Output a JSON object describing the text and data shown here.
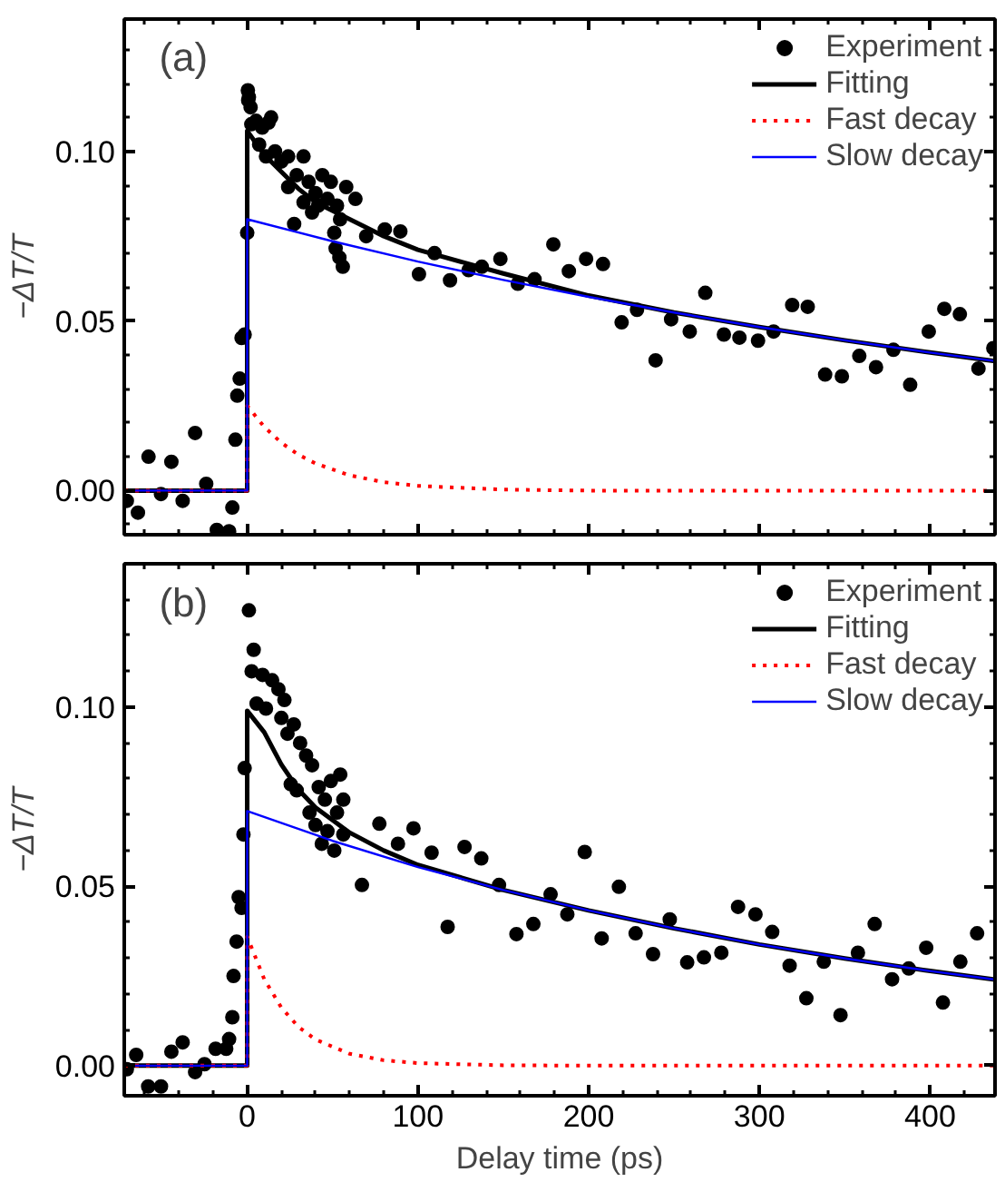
{
  "chart_data": [
    {
      "type": "line",
      "annotations": [
        "(a)"
      ],
      "ylabel": "−ΔT/T",
      "xlim": [
        -72,
        438
      ],
      "ylim": [
        -0.013,
        0.139
      ],
      "xticks": [
        0,
        100,
        200,
        300,
        400
      ],
      "yticks": [
        {
          "value": 0,
          "label": "0.00"
        },
        {
          "value": 0.05,
          "label": "0.05"
        },
        {
          "value": 0.1,
          "label": "0.10"
        }
      ],
      "tick_labels": "y",
      "legend": "top right",
      "grid": false,
      "series": [
        {
          "type": "scatter",
          "marker": "circle",
          "name": "Experiment",
          "color": "#000000",
          "x": [
            -70.5,
            -64,
            -57.8,
            -50.5,
            -44.4,
            -37.8,
            -30.5,
            -24,
            -17.8,
            -10.6,
            -8.7,
            -6.9,
            -5.8,
            -4.4,
            -3.3,
            -1.5,
            0,
            0.4,
            1,
            0.6,
            2,
            2.4,
            5.2,
            8.8,
            12.5,
            14,
            7,
            11,
            16.3,
            20,
            24,
            29,
            33,
            36,
            40,
            44,
            47,
            49,
            52.6,
            54.4,
            58,
            63.4,
            38,
            33,
            27.5,
            51,
            51.8,
            54,
            56,
            41.5,
            24,
            69.7,
            80.6,
            89.7,
            100.6,
            109.7,
            118.8,
            129.7,
            137.4,
            148.3,
            158.5,
            168.3,
            179.3,
            188.4,
            198.5,
            208.4,
            219.3,
            228.3,
            239.2,
            248.3,
            259.2,
            268.3,
            279.2,
            288.3,
            299.2,
            308.3,
            319.2,
            328.3,
            338.5,
            348.3,
            358.5,
            368.3,
            378.5,
            388.3,
            399.2,
            408.3,
            417.4,
            428.3,
            437
          ],
          "values": [
            -0.003,
            -0.0065,
            0.01,
            -0.001,
            0.0085,
            -0.003,
            0.017,
            0.002,
            -0.0116,
            -0.012,
            -0.005,
            0.015,
            0.028,
            0.033,
            0.045,
            0.046,
            0.076,
            0.118,
            0.116,
            0.115,
            0.113,
            0.108,
            0.109,
            0.107,
            0.1085,
            0.11,
            0.102,
            0.0985,
            0.1,
            0.097,
            0.0985,
            0.093,
            0.0985,
            0.091,
            0.0877,
            0.093,
            0.086,
            0.091,
            0.084,
            0.08,
            0.0895,
            0.086,
            0.082,
            0.085,
            0.0786,
            0.076,
            0.0714,
            0.0687,
            0.066,
            0.084,
            0.0895,
            0.075,
            0.077,
            0.0764,
            0.0638,
            0.07,
            0.062,
            0.065,
            0.066,
            0.0683,
            0.061,
            0.0623,
            0.0726,
            0.0647,
            0.0683,
            0.0668,
            0.0496,
            0.0533,
            0.0384,
            0.0505,
            0.0469,
            0.0583,
            0.046,
            0.0451,
            0.0442,
            0.0469,
            0.0547,
            0.0542,
            0.0342,
            0.0337,
            0.0397,
            0.0364,
            0.0415,
            0.0312,
            0.0469,
            0.0536,
            0.052,
            0.036,
            0.042
          ]
        },
        {
          "name": "Fitting",
          "color": "#000000",
          "line_style": "solid",
          "x": [
            -72,
            0,
            0,
            10,
            20,
            30,
            40,
            60,
            80,
            100,
            150,
            200,
            250,
            300,
            350,
            400,
            438
          ],
          "values": [
            0,
            0,
            0.106,
            0.099,
            0.094,
            0.089,
            0.085,
            0.08,
            0.075,
            0.071,
            0.064,
            0.0575,
            0.0525,
            0.0482,
            0.0443,
            0.0407,
            0.0382
          ]
        },
        {
          "name": "Fast decay",
          "color": "#ff0000",
          "line_style": "dotted",
          "x": [
            -72,
            0,
            0,
            10,
            20,
            30,
            40,
            60,
            80,
            100,
            150,
            200,
            438
          ],
          "values": [
            0,
            0,
            0.025,
            0.0188,
            0.0141,
            0.0106,
            0.008,
            0.0045,
            0.0025,
            0.0014,
            0.0003,
            0,
            0
          ]
        },
        {
          "name": "Slow decay",
          "color": "#0000ff",
          "line_style": "solid",
          "x": [
            -72,
            0,
            0,
            50,
            100,
            150,
            200,
            250,
            300,
            350,
            400,
            438
          ],
          "values": [
            0,
            0,
            0.08,
            0.0735,
            0.0675,
            0.0621,
            0.0571,
            0.0525,
            0.0482,
            0.0443,
            0.0407,
            0.0382
          ]
        }
      ]
    },
    {
      "type": "line",
      "annotations": [
        "(b)"
      ],
      "ylabel": "−ΔT/T",
      "xlabel": "Delay time (ps)",
      "xlim": [
        -72,
        438
      ],
      "ylim": [
        -0.0084,
        0.14
      ],
      "xticks": [
        0,
        100,
        200,
        300,
        400
      ],
      "yticks": [
        {
          "value": 0,
          "label": "0.00"
        },
        {
          "value": 0.05,
          "label": "0.05"
        },
        {
          "value": 0.1,
          "label": "0.10"
        }
      ],
      "legend": "top right",
      "grid": false,
      "series": [
        {
          "type": "scatter",
          "marker": "circle",
          "name": "Experiment",
          "color": "#000000",
          "x": [
            -70.5,
            -65,
            -58,
            -50.5,
            -44.4,
            -37.8,
            -30.5,
            -25,
            -18.5,
            -12.3,
            -10.6,
            -8.7,
            -8,
            -6.2,
            -5,
            -3.3,
            -2.2,
            -1.5,
            1,
            3.8,
            2.6,
            5.5,
            9,
            11,
            14.6,
            18.3,
            20,
            21.8,
            23.6,
            27.3,
            31,
            34.5,
            38,
            25.5,
            29,
            41.9,
            45.5,
            49,
            52.6,
            56.3,
            54.5,
            47,
            43.7,
            51,
            56.3,
            36.5,
            40,
            67.2,
            77.4,
            88.3,
            97.4,
            108,
            117.4,
            127.3,
            137.1,
            147.5,
            157.7,
            167.6,
            177.7,
            187.5,
            197.7,
            207.6,
            217.7,
            227.5,
            237.7,
            247.5,
            257.7,
            267.5,
            277.7,
            287.5,
            297.7,
            307.5,
            317.7,
            327.5,
            337.7,
            347.5,
            357.7,
            367.5,
            377.7,
            387.5,
            397.7,
            407.5,
            417.7,
            427.5
          ],
          "values": [
            -0.001,
            0.003,
            -0.0058,
            -0.0058,
            0.0039,
            0.0065,
            -0.0018,
            0.0004,
            0.0047,
            0.0047,
            0.0074,
            0.0135,
            0.025,
            0.0346,
            0.047,
            0.044,
            0.0645,
            0.083,
            0.127,
            0.116,
            0.11,
            0.101,
            0.109,
            0.0996,
            0.1075,
            0.105,
            0.097,
            0.102,
            0.0926,
            0.0952,
            0.09,
            0.0865,
            0.0838,
            0.0785,
            0.0768,
            0.0777,
            0.0742,
            0.0794,
            0.0706,
            0.0742,
            0.0812,
            0.0654,
            0.0619,
            0.06,
            0.0645,
            0.0706,
            0.0671,
            0.0504,
            0.0675,
            0.0619,
            0.0662,
            0.0594,
            0.0387,
            0.061,
            0.0578,
            0.0504,
            0.0367,
            0.0395,
            0.0478,
            0.0422,
            0.0596,
            0.0355,
            0.0499,
            0.0369,
            0.0311,
            0.0408,
            0.0288,
            0.0302,
            0.0315,
            0.0443,
            0.0422,
            0.0373,
            0.0279,
            0.0188,
            0.029,
            0.0141,
            0.0315,
            0.0395,
            0.0241,
            0.0271,
            0.0329,
            0.0176,
            0.029,
            0.0369
          ]
        },
        {
          "name": "Fitting",
          "color": "#000000",
          "line_style": "solid",
          "x": [
            -72,
            0,
            0,
            10,
            20,
            30,
            40,
            60,
            80,
            100,
            150,
            200,
            250,
            300,
            350,
            400,
            438
          ],
          "values": [
            0,
            0,
            0.099,
            0.093,
            0.084,
            0.077,
            0.072,
            0.065,
            0.06,
            0.056,
            0.049,
            0.0433,
            0.0383,
            0.0338,
            0.0299,
            0.0264,
            0.024
          ]
        },
        {
          "name": "Fast decay",
          "color": "#ff0000",
          "line_style": "dotted",
          "x": [
            -72,
            0,
            0,
            10,
            20,
            30,
            40,
            60,
            80,
            100,
            150,
            200,
            438
          ],
          "values": [
            0,
            0,
            0.036,
            0.0241,
            0.0162,
            0.0108,
            0.0073,
            0.0033,
            0.0015,
            0.0007,
            0.0001,
            0,
            0
          ]
        },
        {
          "name": "Slow decay",
          "color": "#0000ff",
          "line_style": "solid",
          "x": [
            -72,
            0,
            0,
            50,
            100,
            150,
            200,
            250,
            300,
            350,
            400,
            438
          ],
          "values": [
            0,
            0,
            0.071,
            0.0627,
            0.0554,
            0.049,
            0.0433,
            0.0383,
            0.0338,
            0.0299,
            0.0264,
            0.024
          ]
        }
      ]
    }
  ]
}
